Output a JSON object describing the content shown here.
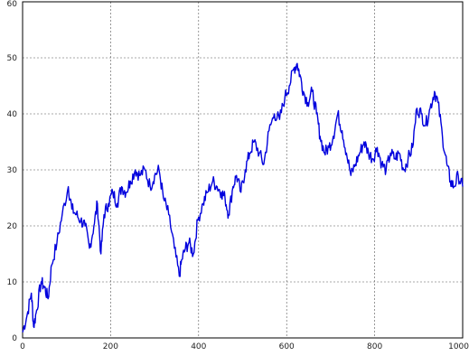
{
  "chart_data": {
    "type": "line",
    "title": "",
    "xlabel": "",
    "ylabel": "",
    "xlim": [
      0,
      1000
    ],
    "ylim": [
      0,
      60
    ],
    "grid": true,
    "xticks": [
      0,
      200,
      400,
      600,
      800,
      1000
    ],
    "yticks": [
      0,
      10,
      20,
      30,
      40,
      50,
      60
    ],
    "xtick_labels": [
      "0",
      "200",
      "400",
      "600",
      "800",
      "1000"
    ],
    "ytick_labels": [
      "0",
      "10",
      "20",
      "30",
      "40",
      "50",
      "60"
    ],
    "colors": {
      "series": "#0000dd",
      "grid": "#555555",
      "frame": "#000000"
    },
    "series": [
      {
        "x": [
          0,
          10,
          20,
          25,
          32,
          42,
          50,
          58,
          66,
          78,
          90,
          104,
          112,
          122,
          132,
          142,
          152,
          162,
          170,
          178,
          185,
          195,
          205,
          215,
          225,
          235,
          245,
          256,
          266,
          278,
          290,
          300,
          310,
          320,
          332,
          345,
          356,
          362,
          370,
          378,
          388,
          398,
          410,
          420,
          432,
          442,
          452,
          460,
          468,
          478,
          486,
          496,
          506,
          516,
          526,
          538,
          548,
          560,
          572,
          584,
          596,
          606,
          616,
          624,
          630,
          638,
          648,
          658,
          668,
          676,
          686,
          696,
          706,
          716,
          726,
          736,
          746,
          756,
          766,
          776,
          786,
          796,
          806,
          816,
          826,
          836,
          846,
          856,
          866,
          876,
          886,
          896,
          906,
          916,
          926,
          936,
          944,
          954,
          964,
          972,
          980,
          990,
          1000
        ],
        "y": [
          1,
          4,
          8,
          2,
          5,
          10,
          9,
          7,
          13,
          17,
          22,
          27,
          23,
          22,
          21,
          20,
          16,
          20,
          24,
          15,
          22,
          24,
          26,
          24,
          27,
          26,
          28,
          30,
          29,
          30,
          27,
          29,
          30,
          25,
          22,
          16,
          11,
          14,
          16,
          17,
          15,
          21,
          24,
          26,
          28,
          27,
          26,
          25,
          22,
          27,
          29,
          26,
          30,
          33,
          35,
          33,
          31,
          37,
          40,
          39,
          43,
          45,
          48,
          49,
          47,
          44,
          42,
          44,
          40,
          36,
          33,
          34,
          36,
          40,
          37,
          33,
          29,
          31,
          33,
          35,
          33,
          32,
          34,
          31,
          30,
          33,
          32,
          33,
          30,
          32,
          34,
          41,
          40,
          38,
          41,
          44,
          42,
          36,
          31,
          28,
          27,
          29,
          27
        ]
      }
    ]
  }
}
